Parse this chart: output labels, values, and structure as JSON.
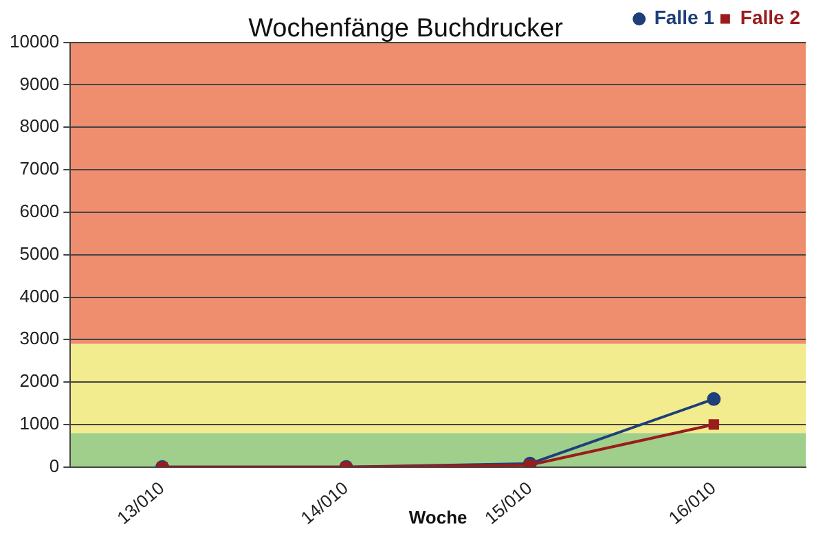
{
  "chart_data": {
    "type": "line",
    "title": "Wochenfänge Buchdrucker",
    "xlabel": "Woche",
    "categories": [
      "13/010",
      "14/010",
      "15/010",
      "16/010"
    ],
    "series": [
      {
        "name": "Falle 1",
        "color": "#1f3f7a",
        "marker": "circle",
        "values": [
          0,
          0,
          80,
          1600
        ]
      },
      {
        "name": "Falle 2",
        "color": "#9b1c1c",
        "marker": "square",
        "values": [
          0,
          0,
          50,
          1000
        ]
      }
    ],
    "ylim": [
      0,
      10000
    ],
    "yticks": [
      0,
      1000,
      2000,
      3000,
      4000,
      5000,
      6000,
      7000,
      8000,
      9000,
      10000
    ],
    "bands": [
      {
        "axis": "y",
        "from": 0,
        "to": 800,
        "color": "#9fcf8a"
      },
      {
        "axis": "y",
        "from": 800,
        "to": 2900,
        "color": "#f2ec8e"
      },
      {
        "axis": "y",
        "from": 2900,
        "to": 10000,
        "color": "#ee8e6e"
      }
    ],
    "grid": "y",
    "legend": "top right"
  }
}
